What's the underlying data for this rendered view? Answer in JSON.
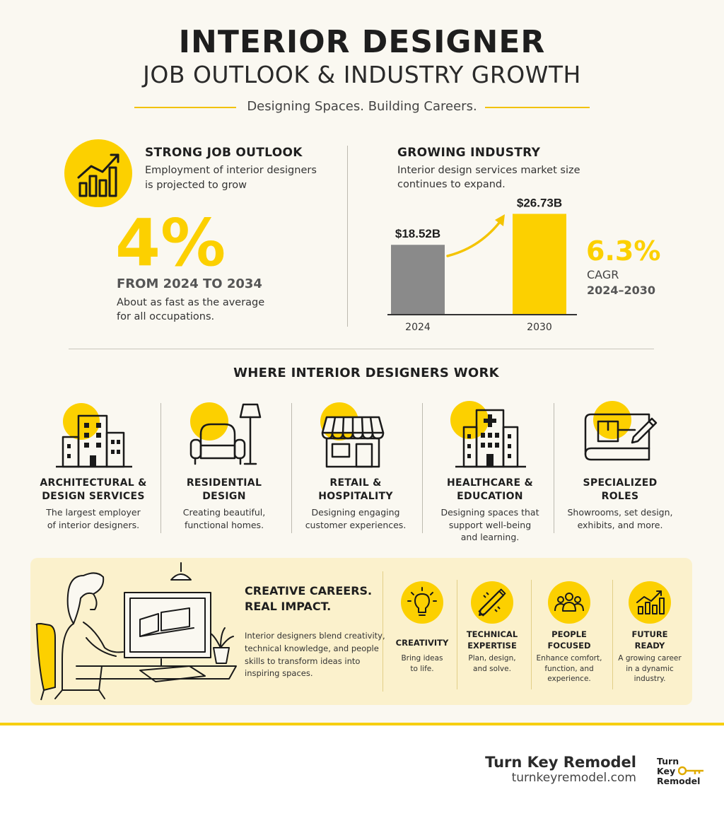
{
  "header": {
    "title": "INTERIOR DESIGNER",
    "subtitle": "JOB OUTLOOK & INDUSTRY GROWTH",
    "tagline": "Designing Spaces. Building Careers."
  },
  "job_outlook": {
    "icon": "growth-chart-icon",
    "title": "STRONG JOB OUTLOOK",
    "desc_line1": "Employment of interior designers",
    "desc_line2": "is projected to grow",
    "percent": "4%",
    "period": "FROM 2024 TO 2034",
    "note_line1": "About as fast as the average",
    "note_line2": "for all occupations."
  },
  "industry": {
    "title": "GROWING INDUSTRY",
    "desc_line1": "Interior design services market size",
    "desc_line2": "continues to expand.",
    "cagr_value": "6.3%",
    "cagr_label": "CAGR",
    "cagr_period": "2024–2030"
  },
  "chart_data": {
    "type": "bar",
    "categories": [
      "2024",
      "2030"
    ],
    "values": [
      18.52,
      26.73
    ],
    "value_labels": [
      "$18.52B",
      "$26.73B"
    ],
    "colors": [
      "#8a8a8a",
      "#fcd000"
    ],
    "ylim": [
      0,
      27
    ]
  },
  "work": {
    "heading": "WHERE INTERIOR DESIGNERS WORK",
    "items": [
      {
        "icon": "office-buildings-icon",
        "title1": "ARCHITECTURAL &",
        "title2": "DESIGN SERVICES",
        "desc1": "The largest employer",
        "desc2": "of interior designers.",
        "desc3": ""
      },
      {
        "icon": "armchair-lamp-icon",
        "title1": "RESIDENTIAL",
        "title2": "DESIGN",
        "desc1": "Creating beautiful,",
        "desc2": "functional homes.",
        "desc3": ""
      },
      {
        "icon": "storefront-icon",
        "title1": "RETAIL &",
        "title2": "HOSPITALITY",
        "desc1": "Designing engaging",
        "desc2": "customer experiences.",
        "desc3": ""
      },
      {
        "icon": "hospital-icon",
        "title1": "HEALTHCARE &",
        "title2": "EDUCATION",
        "desc1": "Designing spaces that",
        "desc2": "support well-being",
        "desc3": "and learning."
      },
      {
        "icon": "blueprint-pencil-icon",
        "title1": "SPECIALIZED",
        "title2": "ROLES",
        "desc1": "Showrooms, set design,",
        "desc2": "exhibits, and more.",
        "desc3": ""
      }
    ]
  },
  "creative": {
    "title1": "CREATIVE CAREERS.",
    "title2": "REAL IMPACT.",
    "body1": "Interior designers blend creativity,",
    "body2": "technical knowledge, and people",
    "body3": "skills to transform ideas into",
    "body4": "inspiring spaces.",
    "traits": [
      {
        "icon": "lightbulb-icon",
        "title1": "CREATIVITY",
        "title2": "",
        "desc1": "Bring ideas",
        "desc2": "to life.",
        "desc3": ""
      },
      {
        "icon": "pencil-ruler-icon",
        "title1": "TECHNICAL",
        "title2": "EXPERTISE",
        "desc1": "Plan, design,",
        "desc2": "and solve.",
        "desc3": ""
      },
      {
        "icon": "people-icon",
        "title1": "PEOPLE",
        "title2": "FOCUSED",
        "desc1": "Enhance comfort,",
        "desc2": "function, and",
        "desc3": "experience."
      },
      {
        "icon": "rising-bars-icon",
        "title1": "FUTURE",
        "title2": "READY",
        "desc1": "A growing career",
        "desc2": "in a dynamic",
        "desc3": "industry."
      }
    ]
  },
  "footer": {
    "brand": "Turn Key Remodel",
    "url": "turnkeyremodel.com",
    "logo_line1": "Turn",
    "logo_line2": "Key",
    "logo_line3": "Remodel"
  }
}
